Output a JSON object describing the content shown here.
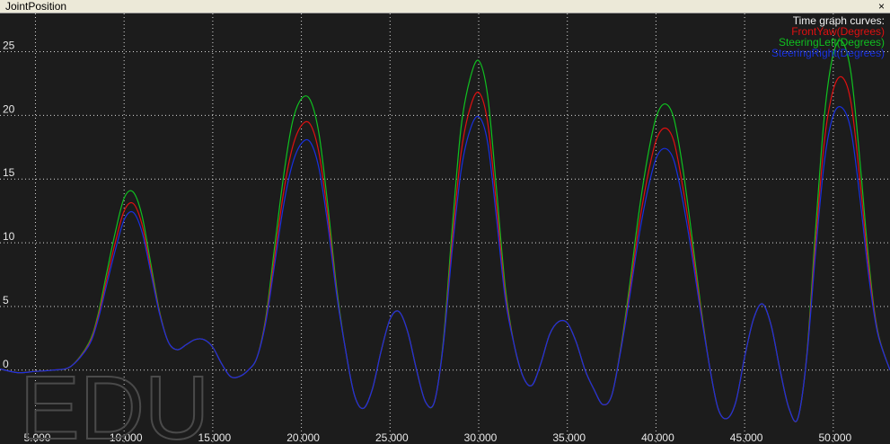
{
  "window": {
    "title": "JointPosition",
    "close_glyph": "×"
  },
  "watermark": "EDU",
  "chart_data": {
    "type": "line",
    "legend_title": "Time graph curves:",
    "legend_position": "top-right",
    "grid": true,
    "xlim": [
      3.0,
      53.2
    ],
    "ylim": [
      -5.8,
      28.0
    ],
    "x_ticks": [
      5,
      10,
      15,
      20,
      25,
      30,
      35,
      40,
      45,
      50
    ],
    "x_tick_labels": [
      "5.000",
      "10.000",
      "15.000",
      "20.000",
      "25.000",
      "30.000",
      "35.000",
      "40.000",
      "45.000",
      "50.000"
    ],
    "y_ticks": [
      0,
      5,
      10,
      15,
      20,
      25
    ],
    "y_tick_labels": [
      "0",
      "5",
      "10",
      "15",
      "20",
      "25"
    ],
    "series": [
      {
        "name": "FrontYaw(Degrees)",
        "color": "#e01010",
        "x": [
          3.0,
          4.0,
          5.0,
          6.0,
          7.0,
          8.0,
          8.5,
          9.0,
          9.5,
          10.0,
          10.5,
          11.0,
          11.5,
          12.0,
          12.5,
          13.0,
          13.5,
          14.0,
          14.5,
          15.0,
          15.5,
          16.0,
          16.5,
          17.0,
          17.5,
          18.0,
          18.5,
          19.0,
          19.5,
          20.0,
          20.5,
          21.0,
          21.5,
          22.0,
          22.5,
          23.0,
          23.5,
          24.0,
          24.5,
          25.0,
          25.5,
          26.0,
          26.5,
          27.0,
          27.5,
          28.0,
          28.5,
          29.0,
          29.5,
          30.0,
          30.5,
          31.0,
          31.5,
          32.0,
          32.5,
          33.0,
          33.5,
          34.0,
          34.5,
          35.0,
          35.5,
          36.0,
          36.5,
          37.0,
          37.5,
          38.0,
          38.5,
          39.0,
          39.5,
          40.0,
          40.5,
          41.0,
          41.5,
          42.0,
          42.5,
          43.0,
          43.5,
          44.0,
          44.5,
          45.0,
          45.5,
          46.0,
          46.5,
          47.0,
          47.5,
          48.0,
          48.5,
          49.0,
          49.5,
          50.0,
          50.5,
          51.0,
          51.5,
          52.0,
          52.5,
          53.2
        ],
        "y": [
          0.1,
          -0.2,
          -0.1,
          0.0,
          0.3,
          2.0,
          4.0,
          7.0,
          10.0,
          12.5,
          13.1,
          11.5,
          8.0,
          4.5,
          2.2,
          1.6,
          2.0,
          2.4,
          2.4,
          1.8,
          0.5,
          -0.5,
          -0.5,
          0.0,
          1.0,
          4.0,
          9.0,
          14.0,
          17.5,
          19.2,
          19.3,
          17.0,
          12.0,
          6.0,
          1.5,
          -2.0,
          -3.0,
          -1.5,
          1.5,
          4.0,
          4.6,
          3.0,
          0.0,
          -2.5,
          -2.5,
          2.0,
          10.0,
          17.0,
          20.5,
          21.8,
          19.5,
          13.0,
          6.0,
          2.0,
          -0.5,
          -1.2,
          0.5,
          2.8,
          3.8,
          3.7,
          2.2,
          0.0,
          -1.5,
          -2.7,
          -2.0,
          1.5,
          6.0,
          11.0,
          15.0,
          18.0,
          19.0,
          18.0,
          14.5,
          10.0,
          5.0,
          0.5,
          -3.0,
          -3.8,
          -2.5,
          1.0,
          4.0,
          5.2,
          3.5,
          0.0,
          -3.0,
          -3.8,
          1.0,
          10.0,
          18.0,
          22.0,
          23.0,
          21.0,
          15.0,
          8.0,
          3.0,
          0.0
        ]
      },
      {
        "name": "SteeringLeft(Degrees)",
        "color": "#10c020",
        "x": [
          3.0,
          4.0,
          5.0,
          6.0,
          7.0,
          8.0,
          8.5,
          9.0,
          9.5,
          10.0,
          10.5,
          11.0,
          11.5,
          12.0,
          12.5,
          13.0,
          13.5,
          14.0,
          14.5,
          15.0,
          15.5,
          16.0,
          16.5,
          17.0,
          17.5,
          18.0,
          18.5,
          19.0,
          19.5,
          20.0,
          20.5,
          21.0,
          21.5,
          22.0,
          22.5,
          23.0,
          23.5,
          24.0,
          24.5,
          25.0,
          25.5,
          26.0,
          26.5,
          27.0,
          27.5,
          28.0,
          28.5,
          29.0,
          29.5,
          30.0,
          30.5,
          31.0,
          31.5,
          32.0,
          32.5,
          33.0,
          33.5,
          34.0,
          34.5,
          35.0,
          35.5,
          36.0,
          36.5,
          37.0,
          37.5,
          38.0,
          38.5,
          39.0,
          39.5,
          40.0,
          40.5,
          41.0,
          41.5,
          42.0,
          42.5,
          43.0,
          43.5,
          44.0,
          44.5,
          45.0,
          45.5,
          46.0,
          46.5,
          47.0,
          47.5,
          48.0,
          48.5,
          49.0,
          49.5,
          50.0,
          50.5,
          51.0,
          51.5,
          52.0,
          52.5,
          53.2
        ],
        "y": [
          0.1,
          -0.2,
          -0.1,
          0.0,
          0.3,
          2.1,
          4.2,
          7.5,
          10.8,
          13.5,
          14.0,
          12.2,
          8.4,
          4.6,
          2.2,
          1.6,
          2.0,
          2.4,
          2.4,
          1.8,
          0.5,
          -0.5,
          -0.5,
          0.0,
          1.0,
          4.2,
          9.8,
          15.3,
          19.5,
          21.3,
          21.2,
          18.5,
          12.8,
          6.3,
          1.5,
          -2.0,
          -3.0,
          -1.5,
          1.5,
          4.0,
          4.6,
          3.0,
          0.0,
          -2.5,
          -2.5,
          2.2,
          11.0,
          19.0,
          22.8,
          24.3,
          21.6,
          14.3,
          6.5,
          2.0,
          -0.5,
          -1.2,
          0.5,
          2.8,
          3.8,
          3.7,
          2.2,
          0.0,
          -1.5,
          -2.7,
          -2.0,
          1.6,
          6.5,
          12.0,
          16.5,
          19.8,
          20.9,
          19.8,
          16.0,
          10.8,
          5.3,
          0.5,
          -3.0,
          -3.8,
          -2.5,
          1.0,
          4.0,
          5.2,
          3.5,
          0.0,
          -3.0,
          -3.8,
          1.1,
          11.0,
          20.0,
          24.8,
          25.8,
          23.3,
          16.5,
          8.6,
          3.1,
          0.0
        ]
      },
      {
        "name": "SteeringRight(Degrees)",
        "color": "#1830e0",
        "x": [
          3.0,
          4.0,
          5.0,
          6.0,
          7.0,
          8.0,
          8.5,
          9.0,
          9.5,
          10.0,
          10.5,
          11.0,
          11.5,
          12.0,
          12.5,
          13.0,
          13.5,
          14.0,
          14.5,
          15.0,
          15.5,
          16.0,
          16.5,
          17.0,
          17.5,
          18.0,
          18.5,
          19.0,
          19.5,
          20.0,
          20.5,
          21.0,
          21.5,
          22.0,
          22.5,
          23.0,
          23.5,
          24.0,
          24.5,
          25.0,
          25.5,
          26.0,
          26.5,
          27.0,
          27.5,
          28.0,
          28.5,
          29.0,
          29.5,
          30.0,
          30.5,
          31.0,
          31.5,
          32.0,
          32.5,
          33.0,
          33.5,
          34.0,
          34.5,
          35.0,
          35.5,
          36.0,
          36.5,
          37.0,
          37.5,
          38.0,
          38.5,
          39.0,
          39.5,
          40.0,
          40.5,
          41.0,
          41.5,
          42.0,
          42.5,
          43.0,
          43.5,
          44.0,
          44.5,
          45.0,
          45.5,
          46.0,
          46.5,
          47.0,
          47.5,
          48.0,
          48.5,
          49.0,
          49.5,
          50.0,
          50.5,
          51.0,
          51.5,
          52.0,
          52.5,
          53.2
        ],
        "y": [
          0.1,
          -0.2,
          -0.1,
          0.0,
          0.3,
          1.9,
          3.8,
          6.6,
          9.4,
          11.8,
          12.4,
          10.9,
          7.7,
          4.4,
          2.2,
          1.6,
          2.0,
          2.4,
          2.4,
          1.8,
          0.5,
          -0.5,
          -0.5,
          0.0,
          1.0,
          3.8,
          8.4,
          13.0,
          16.2,
          17.8,
          17.9,
          15.8,
          11.3,
          5.8,
          1.5,
          -2.0,
          -3.0,
          -1.5,
          1.5,
          4.0,
          4.6,
          3.0,
          0.0,
          -2.5,
          -2.5,
          1.9,
          9.3,
          15.6,
          18.8,
          19.9,
          17.9,
          12.0,
          5.6,
          2.0,
          -0.5,
          -1.2,
          0.5,
          2.8,
          3.8,
          3.7,
          2.2,
          0.0,
          -1.5,
          -2.7,
          -2.0,
          1.4,
          5.6,
          10.2,
          13.9,
          16.6,
          17.4,
          16.5,
          13.4,
          9.3,
          4.7,
          0.5,
          -3.0,
          -3.8,
          -2.5,
          1.0,
          4.0,
          5.2,
          3.5,
          0.0,
          -3.0,
          -3.8,
          0.9,
          9.2,
          16.4,
          20.0,
          20.6,
          18.8,
          13.6,
          7.4,
          2.9,
          0.0
        ]
      }
    ]
  }
}
